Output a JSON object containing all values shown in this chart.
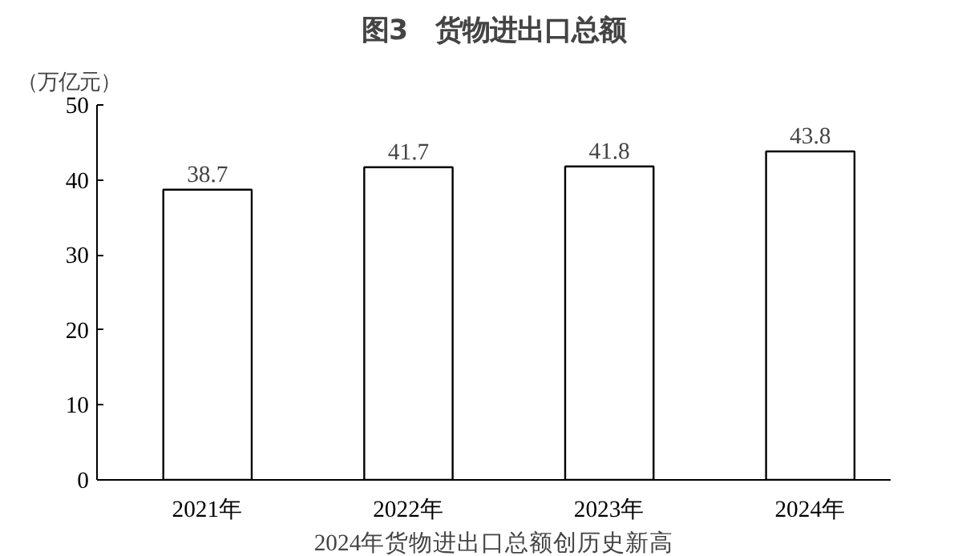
{
  "chart_data": {
    "type": "bar",
    "title": "图3　货物进出口总额",
    "ylabel": "（万亿元）",
    "categories": [
      "2021年",
      "2022年",
      "2023年",
      "2024年"
    ],
    "values": [
      38.7,
      41.7,
      41.8,
      43.8
    ],
    "color": "#ffffff",
    "ylim": [
      0,
      50
    ],
    "yticks": [
      0,
      10,
      20,
      30,
      40,
      50
    ],
    "grid": false,
    "data_labels": true,
    "annotations": [
      "2024年货物进出口总额创历史新高"
    ]
  }
}
